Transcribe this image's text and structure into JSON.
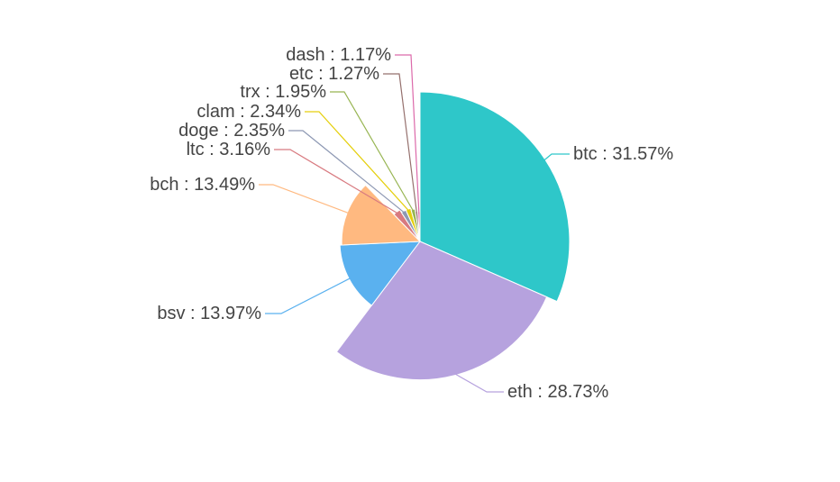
{
  "chart_data": {
    "type": "pie",
    "variant": "nightingale-rose",
    "title": "",
    "legend": "none",
    "label_format": "{name} : {percent}%",
    "slices": [
      {
        "name": "btc",
        "percent": "31.57",
        "value": 31.57,
        "color": "#2ec7c9"
      },
      {
        "name": "eth",
        "percent": "28.73",
        "value": 28.73,
        "color": "#b6a2de"
      },
      {
        "name": "bsv",
        "percent": "13.97",
        "value": 13.97,
        "color": "#5ab1ef"
      },
      {
        "name": "bch",
        "percent": "13.49",
        "value": 13.49,
        "color": "#ffb980"
      },
      {
        "name": "ltc",
        "percent": "3.16",
        "value": 3.16,
        "color": "#d87a80"
      },
      {
        "name": "doge",
        "percent": "2.35",
        "value": 2.35,
        "color": "#8d98b3"
      },
      {
        "name": "clam",
        "percent": "2.34",
        "value": 2.34,
        "color": "#e5cf0d"
      },
      {
        "name": "trx",
        "percent": "1.95",
        "value": 1.95,
        "color": "#97b552"
      },
      {
        "name": "etc",
        "percent": "1.27",
        "value": 1.27,
        "color": "#95706d"
      },
      {
        "name": "dash",
        "percent": "1.17",
        "value": 1.17,
        "color": "#dc69aa"
      }
    ]
  }
}
